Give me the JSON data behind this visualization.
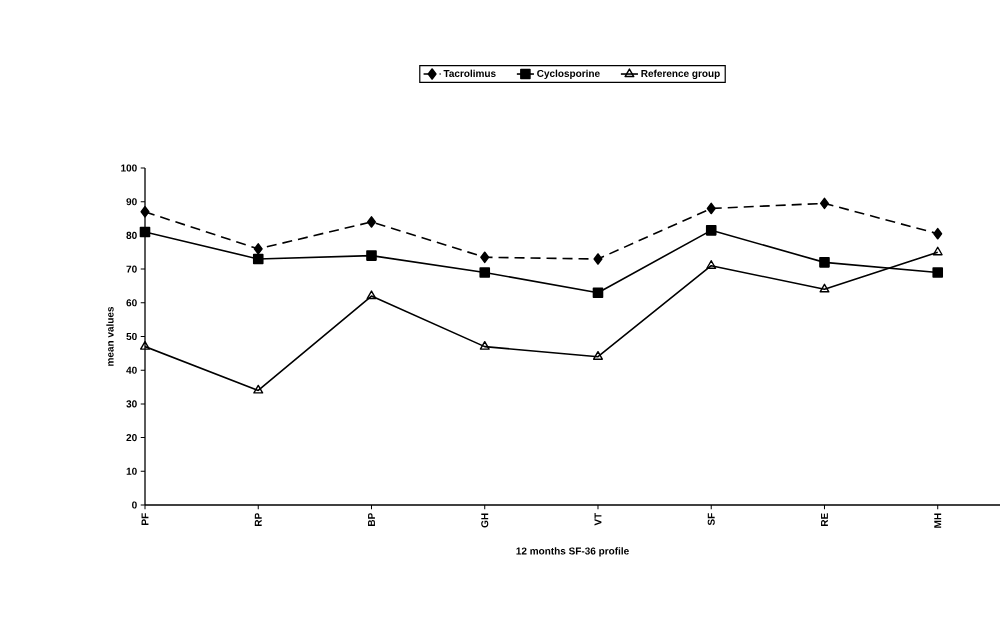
{
  "chart_data": {
    "type": "line",
    "xlabel": "12 months SF-36 profile",
    "ylabel": "mean values",
    "categories": [
      "PF",
      "RP",
      "BP",
      "GH",
      "VT",
      "SF",
      "RE",
      "MH"
    ],
    "series": [
      {
        "name": "Tacrolimus",
        "color": "#000000",
        "marker": "diamond",
        "line_style": "dashed",
        "values": [
          87,
          76,
          84,
          73.5,
          73,
          88,
          89.5,
          80.5
        ]
      },
      {
        "name": "Cyclosporine",
        "color": "#000000",
        "marker": "square",
        "line_style": "solid",
        "values": [
          81,
          73,
          74,
          69,
          63,
          81.5,
          72,
          69
        ]
      },
      {
        "name": "Reference group",
        "color": "#000000",
        "marker": "triangle",
        "line_style": "solid",
        "values": [
          47,
          34,
          62,
          47,
          44,
          71,
          64,
          75
        ]
      }
    ],
    "ylim": [
      0,
      100
    ],
    "yticks": [
      0,
      10,
      20,
      30,
      40,
      50,
      60,
      70,
      80,
      90,
      100
    ],
    "grid": false,
    "legend": "top"
  }
}
